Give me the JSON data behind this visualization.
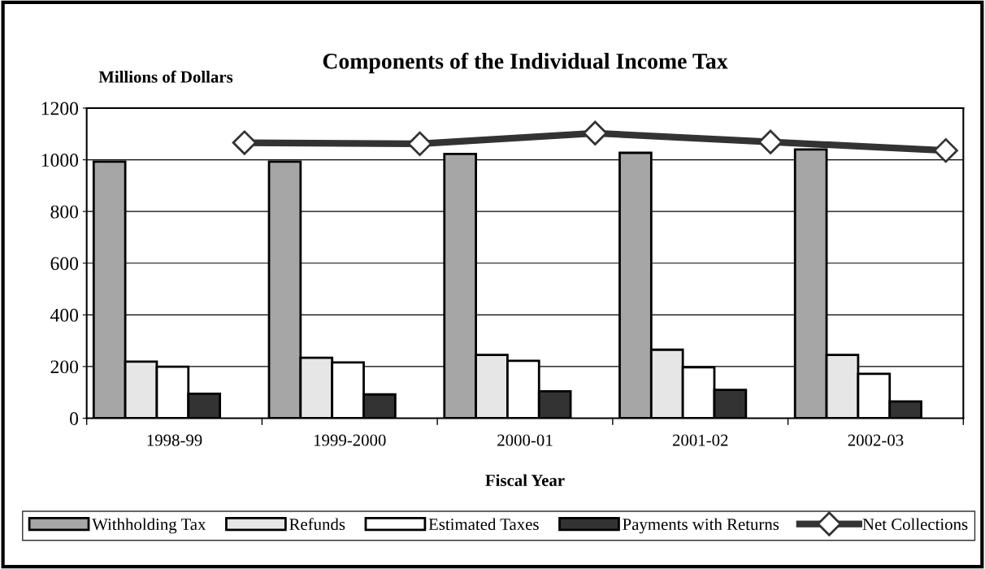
{
  "chart_data": {
    "type": "bar",
    "title": "Components of the Individual Income Tax",
    "ylabel": "Millions of Dollars",
    "xlabel": "Fiscal Year",
    "categories": [
      "1998-99",
      "1999-2000",
      "2000-01",
      "2001-02",
      "2002-03"
    ],
    "series": [
      {
        "name": "Withholding Tax",
        "color": "#a6a6a6",
        "values": [
          993,
          993,
          1023,
          1027,
          1040
        ]
      },
      {
        "name": "Refunds",
        "color": "#e6e6e6",
        "values": [
          219,
          234,
          245,
          265,
          245
        ]
      },
      {
        "name": "Estimated Taxes",
        "color": "#ffffff",
        "values": [
          199,
          216,
          222,
          197,
          172
        ]
      },
      {
        "name": "Payments with Returns",
        "color": "#333333",
        "values": [
          95,
          92,
          104,
          110,
          65
        ]
      },
      {
        "name": "Net Collections",
        "color": "#333333",
        "type": "line",
        "marker": "diamond",
        "values": [
          1066,
          1062,
          1103,
          1069,
          1036
        ]
      }
    ],
    "ylim": [
      0,
      1200
    ],
    "yticks": [
      0,
      200,
      400,
      600,
      800,
      1000,
      1200
    ],
    "grid": "y",
    "legend": "bottom"
  }
}
